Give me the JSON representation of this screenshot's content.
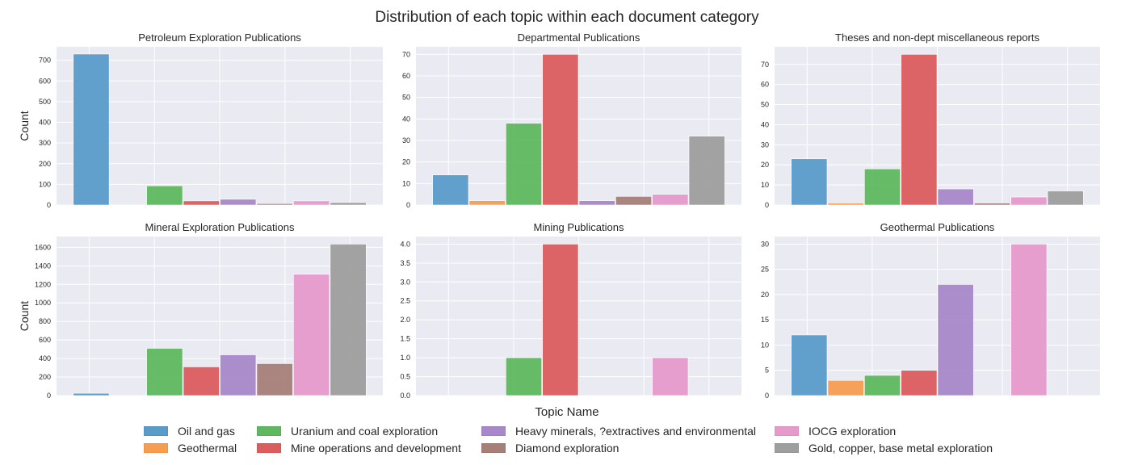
{
  "figure": {
    "title": "Distribution of each topic within each document category"
  },
  "legend": {
    "title": "Topic Name"
  },
  "topics": [
    {
      "name": "Oil and gas",
      "color": "#5a9bc9"
    },
    {
      "name": "Geothermal",
      "color": "#f69d50"
    },
    {
      "name": "Uranium and coal exploration",
      "color": "#5fb85f"
    },
    {
      "name": "Mine operations and development",
      "color": "#db5d5e"
    },
    {
      "name": "Heavy minerals, ?extractives and environmental",
      "color": "#a888c9"
    },
    {
      "name": "Diamond exploration",
      "color": "#a67f78"
    },
    {
      "name": "IOCG exploration",
      "color": "#e69acb"
    },
    {
      "name": "Gold, copper, base metal exploration",
      "color": "#9e9e9e"
    }
  ],
  "chart_data": [
    {
      "type": "bar",
      "title": "Petroleum Exploration Publications",
      "ylabel": "Count",
      "categories": [
        "Oil and gas",
        "Geothermal",
        "Uranium and coal exploration",
        "Mine operations and development",
        "Heavy minerals, ?extractives and environmental",
        "Diamond exploration",
        "IOCG exploration",
        "Gold, copper, base metal exploration"
      ],
      "values": [
        730,
        0,
        93,
        20,
        28,
        7,
        20,
        12
      ],
      "ylim": [
        0,
        765
      ],
      "yticks": [
        0,
        100,
        200,
        300,
        400,
        500,
        600,
        700
      ],
      "ytick_labels": [
        "0",
        "100",
        "200",
        "300",
        "400",
        "500",
        "600",
        "700"
      ],
      "grid": true
    },
    {
      "type": "bar",
      "title": "Departmental Publications",
      "ylabel": "",
      "categories": [
        "Oil and gas",
        "Geothermal",
        "Uranium and coal exploration",
        "Mine operations and development",
        "Heavy minerals, ?extractives and environmental",
        "Diamond exploration",
        "IOCG exploration",
        "Gold, copper, base metal exploration"
      ],
      "values": [
        14,
        2,
        38,
        70,
        2,
        4,
        5,
        32
      ],
      "ylim": [
        0,
        73.5
      ],
      "yticks": [
        0,
        10,
        20,
        30,
        40,
        50,
        60,
        70
      ],
      "ytick_labels": [
        "0",
        "10",
        "20",
        "30",
        "40",
        "50",
        "60",
        "70"
      ],
      "grid": true
    },
    {
      "type": "bar",
      "title": "Theses and non-dept miscellaneous reports",
      "ylabel": "",
      "categories": [
        "Oil and gas",
        "Geothermal",
        "Uranium and coal exploration",
        "Mine operations and development",
        "Heavy minerals, ?extractives and environmental",
        "Diamond exploration",
        "IOCG exploration",
        "Gold, copper, base metal exploration"
      ],
      "values": [
        23,
        1,
        18,
        75,
        8,
        1,
        4,
        7
      ],
      "ylim": [
        0,
        78.75
      ],
      "yticks": [
        0,
        10,
        20,
        30,
        40,
        50,
        60,
        70
      ],
      "ytick_labels": [
        "0",
        "10",
        "20",
        "30",
        "40",
        "50",
        "60",
        "70"
      ],
      "grid": true
    },
    {
      "type": "bar",
      "title": "Mineral Exploration Publications",
      "ylabel": "Count",
      "categories": [
        "Oil and gas",
        "Geothermal",
        "Uranium and coal exploration",
        "Mine operations and development",
        "Heavy minerals, ?extractives and environmental",
        "Diamond exploration",
        "IOCG exploration",
        "Gold, copper, base metal exploration"
      ],
      "values": [
        25,
        0,
        510,
        310,
        440,
        345,
        1310,
        1635
      ],
      "ylim": [
        0,
        1716.75
      ],
      "yticks": [
        0,
        200,
        400,
        600,
        800,
        1000,
        1200,
        1400,
        1600
      ],
      "ytick_labels": [
        "0",
        "200",
        "400",
        "600",
        "800",
        "1000",
        "1200",
        "1400",
        "1600"
      ],
      "grid": true
    },
    {
      "type": "bar",
      "title": "Mining Publications",
      "ylabel": "",
      "categories": [
        "Oil and gas",
        "Geothermal",
        "Uranium and coal exploration",
        "Mine operations and development",
        "Heavy minerals, ?extractives and environmental",
        "Diamond exploration",
        "IOCG exploration",
        "Gold, copper, base metal exploration"
      ],
      "values": [
        0,
        0,
        1,
        4,
        0,
        0,
        1,
        0
      ],
      "ylim": [
        0,
        4.2
      ],
      "yticks": [
        0,
        0.5,
        1,
        1.5,
        2,
        2.5,
        3,
        3.5,
        4
      ],
      "ytick_labels": [
        "0.0",
        "0.5",
        "1.0",
        "1.5",
        "2.0",
        "2.5",
        "3.0",
        "3.5",
        "4.0"
      ],
      "grid": true
    },
    {
      "type": "bar",
      "title": "Geothermal Publications",
      "ylabel": "",
      "categories": [
        "Oil and gas",
        "Geothermal",
        "Uranium and coal exploration",
        "Mine operations and development",
        "Heavy minerals, ?extractives and environmental",
        "Diamond exploration",
        "IOCG exploration",
        "Gold, copper, base metal exploration"
      ],
      "values": [
        12,
        3,
        4,
        5,
        22,
        0,
        30,
        0
      ],
      "ylim": [
        0,
        31.5
      ],
      "yticks": [
        0,
        5,
        10,
        15,
        20,
        25,
        30
      ],
      "ytick_labels": [
        "0",
        "5",
        "10",
        "15",
        "20",
        "25",
        "30"
      ],
      "grid": true
    }
  ]
}
